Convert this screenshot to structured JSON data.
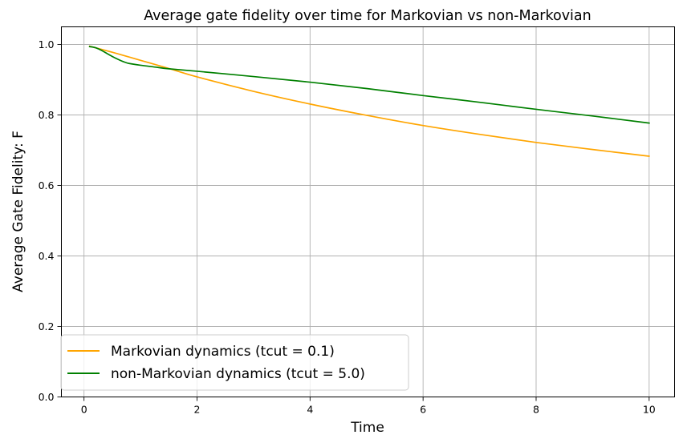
{
  "chart_data": {
    "type": "line",
    "title": "Average gate fidelity over time for Markovian vs non-Markovian",
    "xlabel": "Time",
    "ylabel": "Average Gate Fidelity: F",
    "xlim": [
      -0.4,
      10.45
    ],
    "ylim": [
      0.0,
      1.05
    ],
    "xticks": [
      0,
      2,
      4,
      6,
      8,
      10
    ],
    "xtick_labels": [
      "0",
      "2",
      "4",
      "6",
      "8",
      "10"
    ],
    "yticks": [
      0.0,
      0.2,
      0.4,
      0.6,
      0.8,
      1.0
    ],
    "ytick_labels": [
      "0.0",
      "0.2",
      "0.4",
      "0.6",
      "0.8",
      "1.0"
    ],
    "grid": true,
    "legend_position": "lower-left",
    "series": [
      {
        "name": "Markovian dynamics (tcut = 0.1)",
        "color": "#ffa500",
        "x": [
          0.1,
          0.5,
          1,
          1.5,
          2,
          3,
          4,
          5,
          6,
          7,
          8,
          9,
          10
        ],
        "y": [
          0.995,
          0.978,
          0.955,
          0.932,
          0.908,
          0.867,
          0.831,
          0.799,
          0.77,
          0.745,
          0.722,
          0.702,
          0.683
        ]
      },
      {
        "name": "non-Markovian dynamics (tcut = 5.0)",
        "color": "#008000",
        "x": [
          0.1,
          0.2,
          0.3,
          0.4,
          0.5,
          0.6,
          0.7,
          0.8,
          1.0,
          1.25,
          1.5,
          2,
          3,
          4,
          5,
          6,
          7,
          8,
          9,
          10
        ],
        "y": [
          0.994,
          0.991,
          0.984,
          0.975,
          0.966,
          0.958,
          0.951,
          0.946,
          0.941,
          0.936,
          0.931,
          0.924,
          0.909,
          0.893,
          0.875,
          0.855,
          0.836,
          0.816,
          0.797,
          0.777
        ]
      }
    ]
  }
}
